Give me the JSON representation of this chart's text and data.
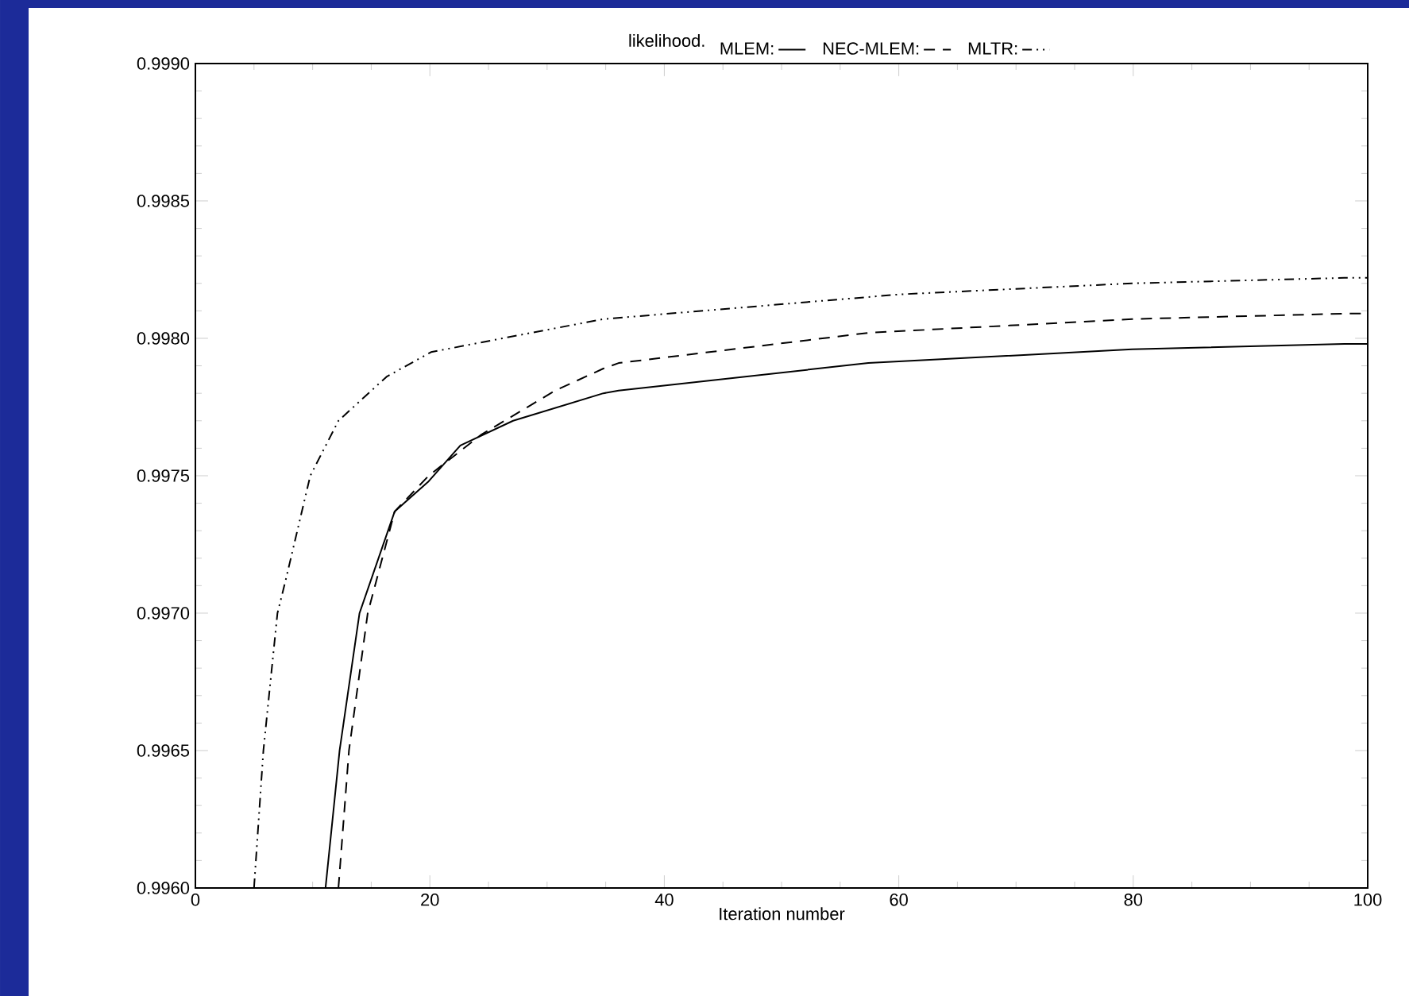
{
  "chart_data": {
    "type": "line",
    "title": "likelihood.",
    "xlabel": "Iteration number",
    "xlim": [
      0,
      100
    ],
    "xticks": [
      0,
      20,
      40,
      60,
      80,
      100
    ],
    "ylim": [
      0.996,
      0.999
    ],
    "yticks": [
      {
        "value": 0.996,
        "label": "0.9960"
      },
      {
        "value": 0.9965,
        "label": "0.9965"
      },
      {
        "value": 0.997,
        "label": "0.9970"
      },
      {
        "value": 0.9975,
        "label": "0.9975"
      },
      {
        "value": 0.998,
        "label": "0.9980"
      },
      {
        "value": 0.9985,
        "label": "0.9985"
      },
      {
        "value": 0.999,
        "label": "0.9990"
      }
    ],
    "legend": "top",
    "grid": false,
    "marker": "none",
    "series": [
      {
        "name": "MLEM:",
        "color": "#000000",
        "line_style": "solid",
        "x": [
          11.1,
          12.3,
          14.0,
          17.0,
          19.9,
          22.6,
          27.1,
          34.8,
          36.1,
          57.4,
          79.9,
          98,
          100
        ],
        "values": [
          0.996,
          0.9965,
          0.997,
          0.99737,
          0.99748,
          0.99761,
          0.9977,
          0.9978,
          0.99781,
          0.99791,
          0.99796,
          0.99798,
          0.99798
        ]
      },
      {
        "name": "NEC-MLEM:",
        "color": "#000000",
        "line_style": "dashed",
        "x": [
          12.2,
          13.1,
          14.7,
          17.0,
          19.9,
          24.4,
          30.7,
          34.8,
          36.1,
          57.4,
          79.9,
          98,
          100
        ],
        "values": [
          0.996,
          0.9965,
          0.997,
          0.99737,
          0.9975,
          0.99765,
          0.99781,
          0.99789,
          0.99791,
          0.99802,
          0.99807,
          0.99809,
          0.99809
        ]
      },
      {
        "name": "MLTR:",
        "color": "#000000",
        "line_style": "dashdotted",
        "x": [
          5.0,
          5.8,
          7.0,
          7.7,
          9.8,
          12.2,
          16.3,
          20.1,
          26.2,
          34.8,
          60.1,
          79.9,
          98,
          100
        ],
        "values": [
          0.996,
          0.9965,
          0.997,
          0.99712,
          0.9975,
          0.9977,
          0.99786,
          0.99795,
          0.998,
          0.99807,
          0.99816,
          0.9982,
          0.99822,
          0.99822
        ]
      }
    ]
  }
}
